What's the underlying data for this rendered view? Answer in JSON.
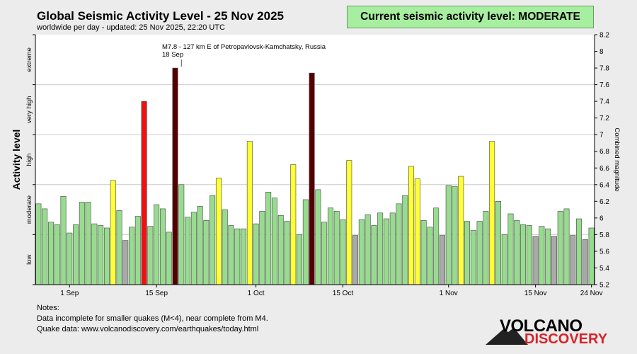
{
  "header": {
    "title": "Global Seismic Activity Level - 25 Nov 2025",
    "subtitle": "worldwide per day - updated: 25 Nov 2025, 22:20 UTC",
    "status": "Current seismic activity level: MODERATE"
  },
  "notes": {
    "heading": "Notes:",
    "line1": "Data incomplete for smaller quakes (M<4), near complete from M4.",
    "line2": "Quake data: www.volcanodiscovery.com/earthquakes/today.html"
  },
  "logo": {
    "top": "VOLCANO",
    "bottom": "DISCOVERY"
  },
  "colors": {
    "low": "#a9a9a9",
    "moderate": "#97dc8e",
    "high": "#ffff33",
    "very_high": "#ee1111",
    "extreme": "#550000",
    "grid": "#cccccc",
    "status_bg": "#a8eea0"
  },
  "chart_data": {
    "type": "bar",
    "ylabel": "Activity level",
    "y2label": "Combined magnitude",
    "ylim": [
      5.2,
      8.2
    ],
    "yticks": [
      5.2,
      5.4,
      5.6,
      5.8,
      6,
      6.2,
      6.4,
      6.6,
      6.8,
      7,
      7.2,
      7.4,
      7.6,
      7.8,
      8,
      8.2
    ],
    "level_labels": [
      "low",
      "moderate",
      "high",
      "very high",
      "extreme"
    ],
    "level_bounds": [
      5.2,
      5.8,
      6.4,
      7.0,
      7.6,
      8.2
    ],
    "x_ticks": [
      {
        "index": 5,
        "label": "1 Sep"
      },
      {
        "index": 19,
        "label": "15 Sep"
      },
      {
        "index": 35,
        "label": "1 Oct"
      },
      {
        "index": 49,
        "label": "15 Oct"
      },
      {
        "index": 66,
        "label": "1 Nov"
      },
      {
        "index": 80,
        "label": "15 Nov"
      },
      {
        "index": 89,
        "label": "24 Nov"
      }
    ],
    "annotation": {
      "index": 23,
      "line1": "M7.8 - 127 km E of Petropavlovsk-Kamchatsky, Russia",
      "line2": "18 Sep"
    },
    "values": [
      6.17,
      6.11,
      5.95,
      5.92,
      6.26,
      5.82,
      5.92,
      6.19,
      6.19,
      5.93,
      5.91,
      5.88,
      6.45,
      6.09,
      5.73,
      5.89,
      6.02,
      7.4,
      5.9,
      6.16,
      6.11,
      5.83,
      7.8,
      6.4,
      6.01,
      6.07,
      6.14,
      5.97,
      6.27,
      6.48,
      6.1,
      5.91,
      5.87,
      5.87,
      6.92,
      5.93,
      6.08,
      6.31,
      6.24,
      6.03,
      5.96,
      6.64,
      5.8,
      6.22,
      7.74,
      6.34,
      5.95,
      6.12,
      6.08,
      5.98,
      6.69,
      5.79,
      5.98,
      6.04,
      5.91,
      6.06,
      5.99,
      6.06,
      6.17,
      6.27,
      6.62,
      6.47,
      5.97,
      5.89,
      6.12,
      5.79,
      6.39,
      6.38,
      6.5,
      5.96,
      5.85,
      5.96,
      6.08,
      6.92,
      6.2,
      5.8,
      6.05,
      5.97,
      5.92,
      5.91,
      5.78,
      5.9,
      5.87,
      5.78,
      6.08,
      6.11,
      5.79,
      5.99,
      5.74,
      5.88
    ],
    "levels": [
      "moderate",
      "moderate",
      "moderate",
      "moderate",
      "moderate",
      "moderate",
      "moderate",
      "moderate",
      "moderate",
      "moderate",
      "moderate",
      "moderate",
      "high",
      "moderate",
      "low",
      "moderate",
      "moderate",
      "very high",
      "moderate",
      "moderate",
      "moderate",
      "moderate",
      "extreme",
      "moderate",
      "moderate",
      "moderate",
      "moderate",
      "moderate",
      "moderate",
      "high",
      "moderate",
      "moderate",
      "moderate",
      "moderate",
      "high",
      "moderate",
      "moderate",
      "moderate",
      "moderate",
      "moderate",
      "moderate",
      "high",
      "moderate",
      "moderate",
      "extreme",
      "moderate",
      "moderate",
      "moderate",
      "moderate",
      "moderate",
      "high",
      "low",
      "moderate",
      "moderate",
      "moderate",
      "moderate",
      "moderate",
      "moderate",
      "moderate",
      "moderate",
      "high",
      "high",
      "moderate",
      "moderate",
      "moderate",
      "low",
      "moderate",
      "moderate",
      "high",
      "moderate",
      "moderate",
      "moderate",
      "moderate",
      "high",
      "moderate",
      "moderate",
      "moderate",
      "moderate",
      "moderate",
      "moderate",
      "low",
      "moderate",
      "moderate",
      "low",
      "moderate",
      "moderate",
      "low",
      "moderate",
      "low",
      "moderate"
    ]
  }
}
